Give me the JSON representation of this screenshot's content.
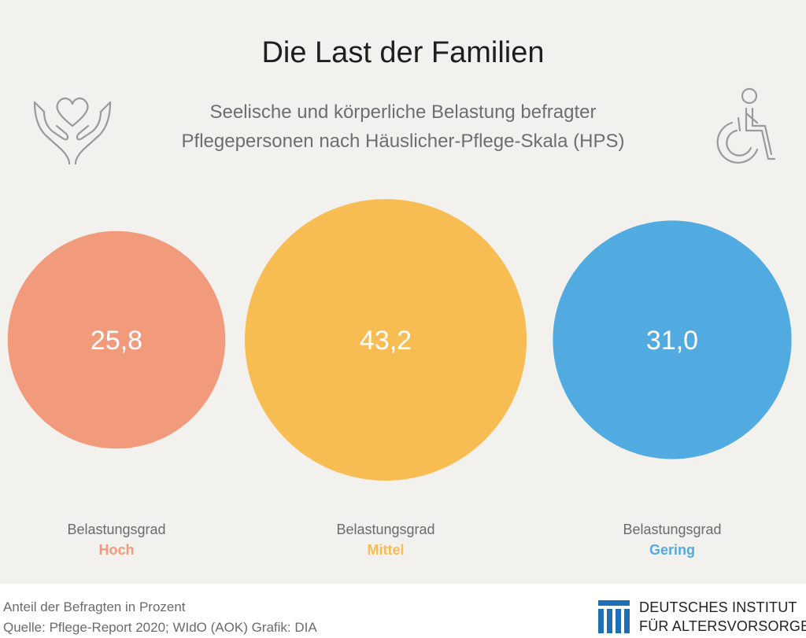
{
  "header": {
    "title": "Die Last der Familien",
    "subtitle_lines": [
      "Seelische und körperliche Belastung befragter",
      "Pflegepersonen nach Häuslicher-Pflege-Skala (HPS)"
    ]
  },
  "icons": {
    "left": "hands-holding-heart-icon",
    "right": "wheelchair-person-icon"
  },
  "colors": {
    "background": "#f3f1ee",
    "hoch": "#f29a7c",
    "mittel": "#f8bd52",
    "gering": "#52abe0",
    "value_text": "#ffffff"
  },
  "chart_data": {
    "type": "bubble",
    "title": "Die Last der Familien",
    "subtitle": "Seelische und körperliche Belastung befragter Pflegepersonen nach Häuslicher-Pflege-Skala (HPS)",
    "unit": "Anteil der Befragten in Prozent",
    "categories": [
      "Hoch",
      "Mittel",
      "Gering"
    ],
    "values": [
      25.8,
      43.2,
      31.0
    ],
    "value_labels": [
      "25,8",
      "43,2",
      "31,0"
    ],
    "category_prefix": "Belastungsgrad"
  },
  "footer": {
    "note": "Anteil der Befragten in Prozent",
    "source": "Quelle: Pflege-Report 2020; WIdO (AOK)  Grafik: DIA"
  },
  "logo": {
    "line1": "DEUTSCHES INSTITUT",
    "line2": "FÜR ALTERSVORSORGE",
    "color": "#1f6fb5"
  }
}
